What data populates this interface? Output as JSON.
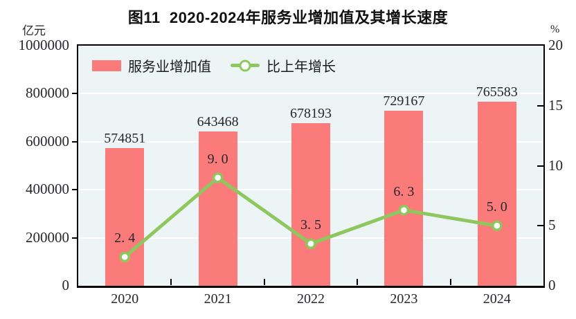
{
  "title": "图11  2020-2024年服务业增加值及其增长速度",
  "axes": {
    "left_unit": "亿元",
    "right_unit": "%",
    "left_tick_labels": [
      "0",
      "200000",
      "400000",
      "600000",
      "800000",
      "1000000"
    ],
    "right_tick_labels": [
      "0",
      "5",
      "10",
      "15",
      "20"
    ]
  },
  "legend": {
    "bar_label": "服务业增加值",
    "line_label": "比上年增长"
  },
  "chart_data": {
    "type": "bar+line",
    "title": "图11  2020-2024年服务业增加值及其增长速度",
    "categories": [
      "2020",
      "2021",
      "2022",
      "2023",
      "2024"
    ],
    "series": [
      {
        "name": "服务业增加值",
        "type": "bar",
        "axis": "left",
        "unit": "亿元",
        "values": [
          574851,
          643468,
          678193,
          729167,
          765583
        ],
        "value_labels": [
          "574851",
          "643468",
          "678193",
          "729167",
          "765583"
        ],
        "color": "#FB7B7B"
      },
      {
        "name": "比上年增长",
        "type": "line",
        "axis": "right",
        "unit": "%",
        "values": [
          2.4,
          9.0,
          3.5,
          6.3,
          5.0
        ],
        "value_labels": [
          "2. 4",
          "9. 0",
          "3. 5",
          "6. 3",
          "5. 0"
        ],
        "color": "#8DC75E"
      }
    ],
    "left_axis": {
      "label": "亿元",
      "min": 0,
      "max": 1000000,
      "tick_step": 200000,
      "ticks": [
        0,
        200000,
        400000,
        600000,
        800000,
        1000000
      ]
    },
    "right_axis": {
      "label": "%",
      "min": 0,
      "max": 20,
      "tick_step": 5,
      "ticks": [
        0,
        5,
        10,
        15,
        20
      ]
    },
    "grid": true,
    "grid_color": "#FFFFFF",
    "plot_bg": "#EDF4F6",
    "legend_position": "inside-top-left"
  },
  "colors": {
    "bar": "#FB7B7B",
    "line": "#8DC75E",
    "marker_fill": "#FFFFFF",
    "plot_bg": "#EDF4F6",
    "grid": "#FFFFFF",
    "axis": "#000000",
    "text": "#26262E",
    "title": "#111111",
    "background": "#FFFFFF"
  }
}
